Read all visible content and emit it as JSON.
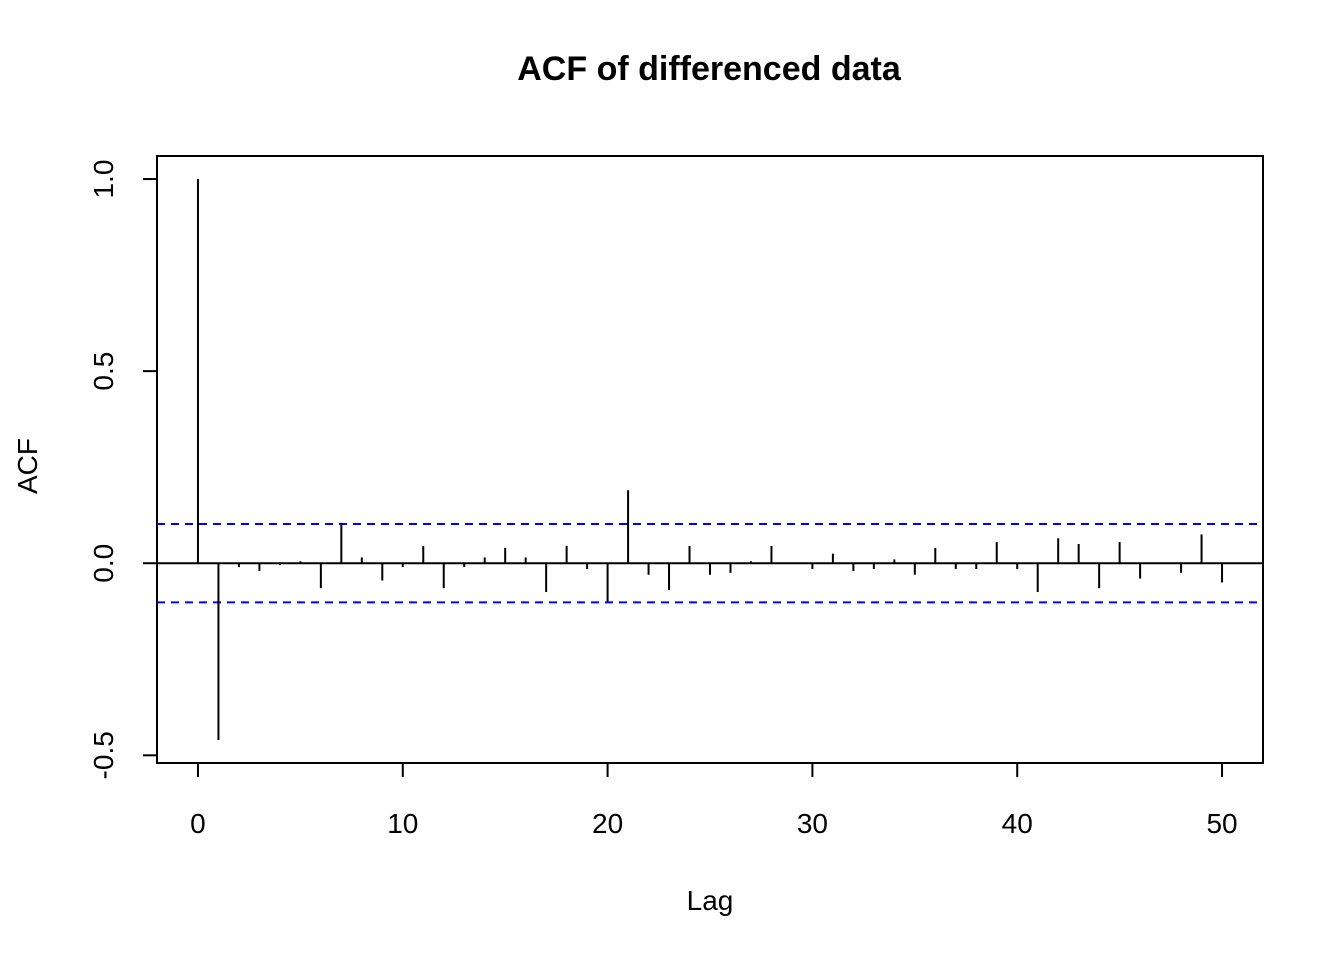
{
  "chart_data": {
    "type": "bar",
    "title": "ACF of differenced data",
    "xlabel": "Lag",
    "ylabel": "ACF",
    "xlim": [
      -2,
      52
    ],
    "ylim": [
      -0.52,
      1.06
    ],
    "x_ticks": [
      0,
      10,
      20,
      30,
      40,
      50
    ],
    "x_tick_labels": [
      "0",
      "10",
      "20",
      "30",
      "40",
      "50"
    ],
    "y_ticks": [
      -0.5,
      0.0,
      0.5,
      1.0
    ],
    "y_tick_labels": [
      "-0.5",
      "0.0",
      "0.5",
      "1.0"
    ],
    "grid": false,
    "confidence_bounds": {
      "upper": 0.102,
      "lower": -0.102,
      "color": "#0000ff",
      "style": "dashed"
    },
    "zero_line": 0,
    "lags": [
      0,
      1,
      2,
      3,
      4,
      5,
      6,
      7,
      8,
      9,
      10,
      11,
      12,
      13,
      14,
      15,
      16,
      17,
      18,
      19,
      20,
      21,
      22,
      23,
      24,
      25,
      26,
      27,
      28,
      29,
      30,
      31,
      32,
      33,
      34,
      35,
      36,
      37,
      38,
      39,
      40,
      41,
      42,
      43,
      44,
      45,
      46,
      47,
      48,
      49,
      50
    ],
    "values": [
      1.0,
      -0.46,
      -0.01,
      -0.02,
      -0.005,
      0.005,
      -0.065,
      0.105,
      0.015,
      -0.045,
      -0.01,
      0.045,
      -0.065,
      -0.01,
      0.015,
      0.04,
      0.015,
      -0.075,
      0.045,
      -0.015,
      -0.1,
      0.19,
      -0.03,
      -0.07,
      0.045,
      -0.03,
      -0.025,
      0.005,
      0.045,
      0.0,
      -0.015,
      0.025,
      -0.02,
      -0.015,
      0.01,
      -0.03,
      0.04,
      -0.015,
      -0.015,
      0.055,
      -0.015,
      -0.075,
      0.065,
      0.05,
      -0.065,
      0.055,
      -0.04,
      0.0,
      -0.025,
      0.075,
      -0.05
    ]
  }
}
